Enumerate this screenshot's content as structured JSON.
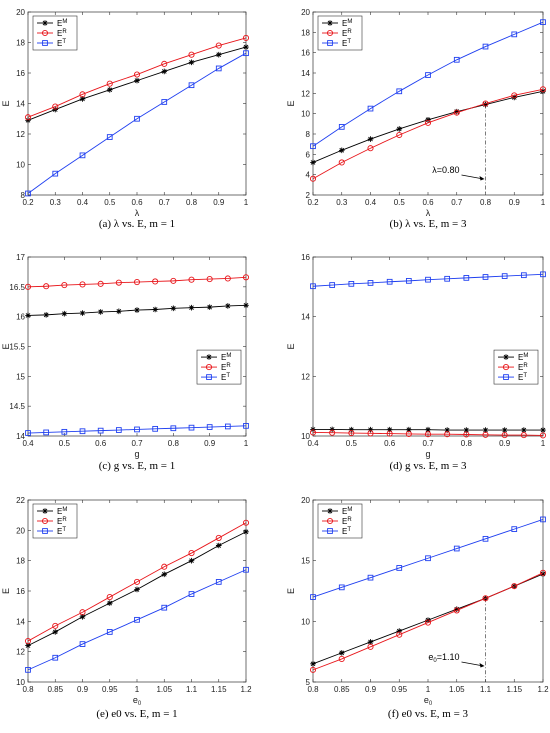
{
  "colors": {
    "M": "#000000",
    "R": "#e8161b",
    "T": "#1f3ff0"
  },
  "chart_data": [
    {
      "id": "a",
      "type": "line",
      "caption": "(a) λ vs. E, m = 1",
      "xlabel": "λ",
      "ylabel": "E",
      "xlim": [
        0.2,
        1
      ],
      "ylim": [
        8,
        20
      ],
      "xticks": [
        "0.2",
        "0.3",
        "0.4",
        "0.5",
        "0.6",
        "0.7",
        "0.8",
        "0.9",
        "1"
      ],
      "yticks": [
        "8",
        "10",
        "12",
        "14",
        "16",
        "18",
        "20"
      ],
      "legend_position": "top-left",
      "x": [
        0.2,
        0.3,
        0.4,
        0.5,
        0.6,
        0.7,
        0.8,
        0.9,
        1.0
      ],
      "series": [
        {
          "name": "E^M",
          "key": "M",
          "marker": "star",
          "values": [
            12.9,
            13.6,
            14.3,
            14.9,
            15.5,
            16.1,
            16.7,
            17.2,
            17.7
          ]
        },
        {
          "name": "E^R",
          "key": "R",
          "marker": "circle",
          "values": [
            13.1,
            13.8,
            14.6,
            15.3,
            15.9,
            16.6,
            17.2,
            17.8,
            18.3
          ]
        },
        {
          "name": "E^T",
          "key": "T",
          "marker": "square",
          "values": [
            8.1,
            9.4,
            10.6,
            11.8,
            13.0,
            14.1,
            15.2,
            16.3,
            17.3
          ]
        }
      ]
    },
    {
      "id": "b",
      "type": "line",
      "caption": "(b) λ vs. E, m = 3",
      "xlabel": "λ",
      "ylabel": "E",
      "xlim": [
        0.2,
        1
      ],
      "ylim": [
        2,
        20
      ],
      "xticks": [
        "0.2",
        "0.3",
        "0.4",
        "0.5",
        "0.6",
        "0.7",
        "0.8",
        "0.9",
        "1"
      ],
      "yticks": [
        "2",
        "4",
        "6",
        "8",
        "10",
        "12",
        "14",
        "16",
        "18",
        "20"
      ],
      "legend_position": "top-left",
      "x": [
        0.2,
        0.3,
        0.4,
        0.5,
        0.6,
        0.7,
        0.8,
        0.9,
        1.0
      ],
      "series": [
        {
          "name": "E^M",
          "key": "M",
          "marker": "star",
          "values": [
            5.2,
            6.4,
            7.5,
            8.5,
            9.4,
            10.2,
            10.9,
            11.6,
            12.2
          ]
        },
        {
          "name": "E^R",
          "key": "R",
          "marker": "circle",
          "values": [
            3.6,
            5.2,
            6.6,
            7.9,
            9.1,
            10.1,
            11.0,
            11.8,
            12.4
          ]
        },
        {
          "name": "E^T",
          "key": "T",
          "marker": "square",
          "values": [
            6.8,
            8.7,
            10.5,
            12.2,
            13.8,
            15.3,
            16.6,
            17.8,
            19.0
          ]
        }
      ],
      "annotation": {
        "text": "λ=0.80",
        "x": 0.8,
        "y": 10.9,
        "arrow_to_y": 2
      }
    },
    {
      "id": "c",
      "type": "line",
      "caption": "(c) g vs. E, m = 1",
      "xlabel": "g",
      "ylabel": "E",
      "xlim": [
        0.4,
        1
      ],
      "ylim": [
        14,
        17
      ],
      "xticks": [
        "0.4",
        "0.5",
        "0.6",
        "0.7",
        "0.8",
        "0.9",
        "1"
      ],
      "yticks": [
        "14",
        "14.5",
        "15",
        "15.5",
        "16",
        "16.5",
        "17"
      ],
      "legend_position": "center-right",
      "x": [
        0.4,
        0.45,
        0.5,
        0.55,
        0.6,
        0.65,
        0.7,
        0.75,
        0.8,
        0.85,
        0.9,
        0.95,
        1.0
      ],
      "series": [
        {
          "name": "E^M",
          "key": "M",
          "marker": "star",
          "values": [
            16.02,
            16.03,
            16.05,
            16.06,
            16.08,
            16.09,
            16.11,
            16.12,
            16.14,
            16.15,
            16.16,
            16.18,
            16.19
          ]
        },
        {
          "name": "E^R",
          "key": "R",
          "marker": "circle",
          "values": [
            16.5,
            16.51,
            16.53,
            16.54,
            16.55,
            16.57,
            16.58,
            16.59,
            16.6,
            16.62,
            16.63,
            16.64,
            16.66
          ]
        },
        {
          "name": "E^T",
          "key": "T",
          "marker": "square",
          "values": [
            14.05,
            14.06,
            14.07,
            14.08,
            14.09,
            14.1,
            14.11,
            14.12,
            14.13,
            14.14,
            14.15,
            14.16,
            14.17
          ]
        }
      ]
    },
    {
      "id": "d",
      "type": "line",
      "caption": "(d) g vs. E, m = 3",
      "xlabel": "g",
      "ylabel": "E",
      "xlim": [
        0.4,
        1
      ],
      "ylim": [
        10,
        16
      ],
      "xticks": [
        "0.4",
        "0.5",
        "0.6",
        "0.7",
        "0.8",
        "0.9",
        "1"
      ],
      "yticks": [
        "10",
        "12",
        "14",
        "16"
      ],
      "legend_position": "center-right",
      "x": [
        0.4,
        0.45,
        0.5,
        0.55,
        0.6,
        0.65,
        0.7,
        0.75,
        0.8,
        0.85,
        0.9,
        0.95,
        1.0
      ],
      "series": [
        {
          "name": "E^M",
          "key": "M",
          "marker": "star",
          "values": [
            10.22,
            10.22,
            10.21,
            10.21,
            10.21,
            10.21,
            10.21,
            10.2,
            10.2,
            10.2,
            10.2,
            10.2,
            10.2
          ]
        },
        {
          "name": "E^R",
          "key": "R",
          "marker": "circle",
          "values": [
            10.12,
            10.11,
            10.1,
            10.09,
            10.08,
            10.07,
            10.06,
            10.06,
            10.05,
            10.04,
            10.03,
            10.03,
            10.02
          ]
        },
        {
          "name": "E^T",
          "key": "T",
          "marker": "square",
          "values": [
            15.02,
            15.06,
            15.1,
            15.13,
            15.17,
            15.2,
            15.24,
            15.27,
            15.3,
            15.33,
            15.36,
            15.39,
            15.42
          ]
        }
      ]
    },
    {
      "id": "e",
      "type": "line",
      "caption": "(e) e0 vs. E, m = 1",
      "xlabel": "e0",
      "ylabel": "E",
      "xlim": [
        0.8,
        1.2
      ],
      "ylim": [
        10,
        22
      ],
      "xticks": [
        "0.8",
        "0.85",
        "0.9",
        "0.95",
        "1",
        "1.05",
        "1.1",
        "1.15",
        "1.2"
      ],
      "yticks": [
        "10",
        "12",
        "14",
        "16",
        "18",
        "20",
        "22"
      ],
      "legend_position": "top-left",
      "x": [
        0.8,
        0.85,
        0.9,
        0.95,
        1.0,
        1.05,
        1.1,
        1.15,
        1.2
      ],
      "series": [
        {
          "name": "E^M",
          "key": "M",
          "marker": "star",
          "values": [
            12.4,
            13.3,
            14.3,
            15.2,
            16.1,
            17.1,
            18.0,
            19.0,
            19.9
          ]
        },
        {
          "name": "E^R",
          "key": "R",
          "marker": "circle",
          "values": [
            12.7,
            13.7,
            14.6,
            15.6,
            16.6,
            17.6,
            18.5,
            19.5,
            20.5
          ]
        },
        {
          "name": "E^T",
          "key": "T",
          "marker": "square",
          "values": [
            10.8,
            11.6,
            12.5,
            13.3,
            14.1,
            14.9,
            15.8,
            16.6,
            17.4
          ]
        }
      ]
    },
    {
      "id": "f",
      "type": "line",
      "caption": "(f) e0 vs. E, m = 3",
      "xlabel": "e0",
      "ylabel": "E",
      "xlim": [
        0.8,
        1.2
      ],
      "ylim": [
        5,
        20
      ],
      "xticks": [
        "0.8",
        "0.85",
        "0.9",
        "0.95",
        "1",
        "1.05",
        "1.1",
        "1.15",
        "1.2"
      ],
      "yticks": [
        "5",
        "10",
        "15",
        "20"
      ],
      "legend_position": "top-left",
      "x": [
        0.8,
        0.85,
        0.9,
        0.95,
        1.0,
        1.05,
        1.1,
        1.15,
        1.2
      ],
      "series": [
        {
          "name": "E^M",
          "key": "M",
          "marker": "star",
          "values": [
            6.5,
            7.4,
            8.3,
            9.2,
            10.1,
            11.0,
            11.9,
            12.9,
            13.9
          ]
        },
        {
          "name": "E^R",
          "key": "R",
          "marker": "circle",
          "values": [
            6.0,
            6.9,
            7.9,
            8.9,
            9.9,
            10.9,
            11.9,
            12.9,
            14.0
          ]
        },
        {
          "name": "E^T",
          "key": "T",
          "marker": "square",
          "values": [
            12.0,
            12.8,
            13.6,
            14.4,
            15.2,
            16.0,
            16.8,
            17.6,
            18.4
          ]
        }
      ],
      "annotation": {
        "text": "e0=1.10",
        "x": 1.1,
        "y": 11.9,
        "arrow_to_y": 5
      }
    }
  ]
}
